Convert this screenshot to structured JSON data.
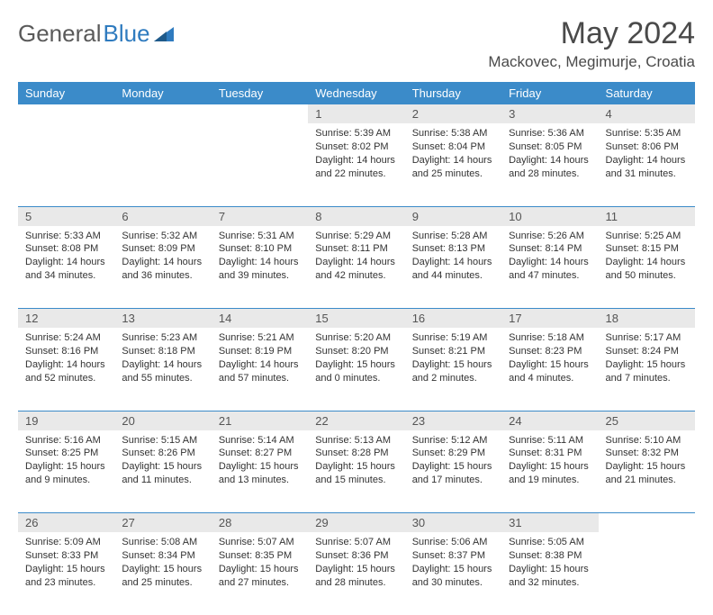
{
  "brand": {
    "part1": "General",
    "part2": "Blue"
  },
  "title": "May 2024",
  "location": "Mackovec, Megimurje, Croatia",
  "colors": {
    "header_bg": "#3b8bc9",
    "header_text": "#ffffff",
    "daynum_bg": "#e9e9e9",
    "text": "#333333",
    "rule": "#3b8bc9",
    "brand_gray": "#5a5a5a",
    "brand_blue": "#2f7bbf"
  },
  "weekdays": [
    "Sunday",
    "Monday",
    "Tuesday",
    "Wednesday",
    "Thursday",
    "Friday",
    "Saturday"
  ],
  "weeks": [
    [
      null,
      null,
      null,
      {
        "d": "1",
        "sr": "5:39 AM",
        "ss": "8:02 PM",
        "dl": "14 hours and 22 minutes."
      },
      {
        "d": "2",
        "sr": "5:38 AM",
        "ss": "8:04 PM",
        "dl": "14 hours and 25 minutes."
      },
      {
        "d": "3",
        "sr": "5:36 AM",
        "ss": "8:05 PM",
        "dl": "14 hours and 28 minutes."
      },
      {
        "d": "4",
        "sr": "5:35 AM",
        "ss": "8:06 PM",
        "dl": "14 hours and 31 minutes."
      }
    ],
    [
      {
        "d": "5",
        "sr": "5:33 AM",
        "ss": "8:08 PM",
        "dl": "14 hours and 34 minutes."
      },
      {
        "d": "6",
        "sr": "5:32 AM",
        "ss": "8:09 PM",
        "dl": "14 hours and 36 minutes."
      },
      {
        "d": "7",
        "sr": "5:31 AM",
        "ss": "8:10 PM",
        "dl": "14 hours and 39 minutes."
      },
      {
        "d": "8",
        "sr": "5:29 AM",
        "ss": "8:11 PM",
        "dl": "14 hours and 42 minutes."
      },
      {
        "d": "9",
        "sr": "5:28 AM",
        "ss": "8:13 PM",
        "dl": "14 hours and 44 minutes."
      },
      {
        "d": "10",
        "sr": "5:26 AM",
        "ss": "8:14 PM",
        "dl": "14 hours and 47 minutes."
      },
      {
        "d": "11",
        "sr": "5:25 AM",
        "ss": "8:15 PM",
        "dl": "14 hours and 50 minutes."
      }
    ],
    [
      {
        "d": "12",
        "sr": "5:24 AM",
        "ss": "8:16 PM",
        "dl": "14 hours and 52 minutes."
      },
      {
        "d": "13",
        "sr": "5:23 AM",
        "ss": "8:18 PM",
        "dl": "14 hours and 55 minutes."
      },
      {
        "d": "14",
        "sr": "5:21 AM",
        "ss": "8:19 PM",
        "dl": "14 hours and 57 minutes."
      },
      {
        "d": "15",
        "sr": "5:20 AM",
        "ss": "8:20 PM",
        "dl": "15 hours and 0 minutes."
      },
      {
        "d": "16",
        "sr": "5:19 AM",
        "ss": "8:21 PM",
        "dl": "15 hours and 2 minutes."
      },
      {
        "d": "17",
        "sr": "5:18 AM",
        "ss": "8:23 PM",
        "dl": "15 hours and 4 minutes."
      },
      {
        "d": "18",
        "sr": "5:17 AM",
        "ss": "8:24 PM",
        "dl": "15 hours and 7 minutes."
      }
    ],
    [
      {
        "d": "19",
        "sr": "5:16 AM",
        "ss": "8:25 PM",
        "dl": "15 hours and 9 minutes."
      },
      {
        "d": "20",
        "sr": "5:15 AM",
        "ss": "8:26 PM",
        "dl": "15 hours and 11 minutes."
      },
      {
        "d": "21",
        "sr": "5:14 AM",
        "ss": "8:27 PM",
        "dl": "15 hours and 13 minutes."
      },
      {
        "d": "22",
        "sr": "5:13 AM",
        "ss": "8:28 PM",
        "dl": "15 hours and 15 minutes."
      },
      {
        "d": "23",
        "sr": "5:12 AM",
        "ss": "8:29 PM",
        "dl": "15 hours and 17 minutes."
      },
      {
        "d": "24",
        "sr": "5:11 AM",
        "ss": "8:31 PM",
        "dl": "15 hours and 19 minutes."
      },
      {
        "d": "25",
        "sr": "5:10 AM",
        "ss": "8:32 PM",
        "dl": "15 hours and 21 minutes."
      }
    ],
    [
      {
        "d": "26",
        "sr": "5:09 AM",
        "ss": "8:33 PM",
        "dl": "15 hours and 23 minutes."
      },
      {
        "d": "27",
        "sr": "5:08 AM",
        "ss": "8:34 PM",
        "dl": "15 hours and 25 minutes."
      },
      {
        "d": "28",
        "sr": "5:07 AM",
        "ss": "8:35 PM",
        "dl": "15 hours and 27 minutes."
      },
      {
        "d": "29",
        "sr": "5:07 AM",
        "ss": "8:36 PM",
        "dl": "15 hours and 28 minutes."
      },
      {
        "d": "30",
        "sr": "5:06 AM",
        "ss": "8:37 PM",
        "dl": "15 hours and 30 minutes."
      },
      {
        "d": "31",
        "sr": "5:05 AM",
        "ss": "8:38 PM",
        "dl": "15 hours and 32 minutes."
      },
      null
    ]
  ],
  "labels": {
    "sunrise": "Sunrise:",
    "sunset": "Sunset:",
    "daylight": "Daylight:"
  }
}
